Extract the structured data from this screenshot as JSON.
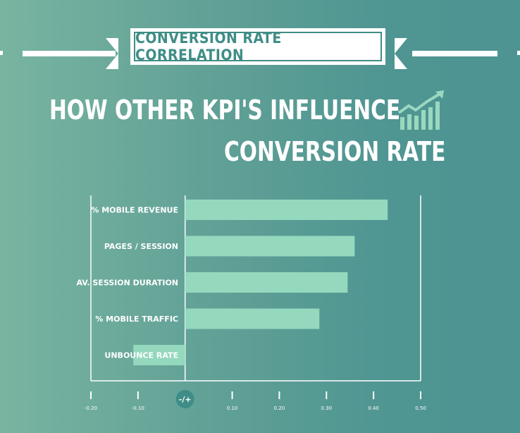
{
  "banner": {
    "text": "CONVERSION RATE CORRELATION"
  },
  "headline": {
    "line1": "HOW OTHER KPI'S INFLUENCE",
    "line2": "CONVERSION RATE"
  },
  "colors": {
    "bar": "#94d8be",
    "background": "#5c9f97",
    "text": "#ffffff",
    "zero_badge": "#3f8d86"
  },
  "icons": {
    "trend": "bar-chart-trend-up-icon"
  },
  "chart_data": {
    "type": "bar",
    "orientation": "horizontal",
    "categories": [
      "% MOBILE REVENUE",
      "PAGES / SESSION",
      "AV. SESSION DURATION",
      "% MOBILE TRAFFIC",
      "UNBOUNCE RATE"
    ],
    "values": [
      0.43,
      0.36,
      0.345,
      0.285,
      -0.11
    ],
    "title": "",
    "xlabel": "",
    "ylabel": "",
    "xlim": [
      -0.2,
      0.5
    ],
    "x_ticks": [
      -0.2,
      -0.1,
      0,
      0.1,
      0.2,
      0.3,
      0.4,
      0.5
    ],
    "x_tick_labels": [
      "-0.20",
      "-0.10",
      "-/+",
      "0.10",
      "0.20",
      "0.30",
      "0.40",
      "0.50"
    ],
    "grid": false
  }
}
